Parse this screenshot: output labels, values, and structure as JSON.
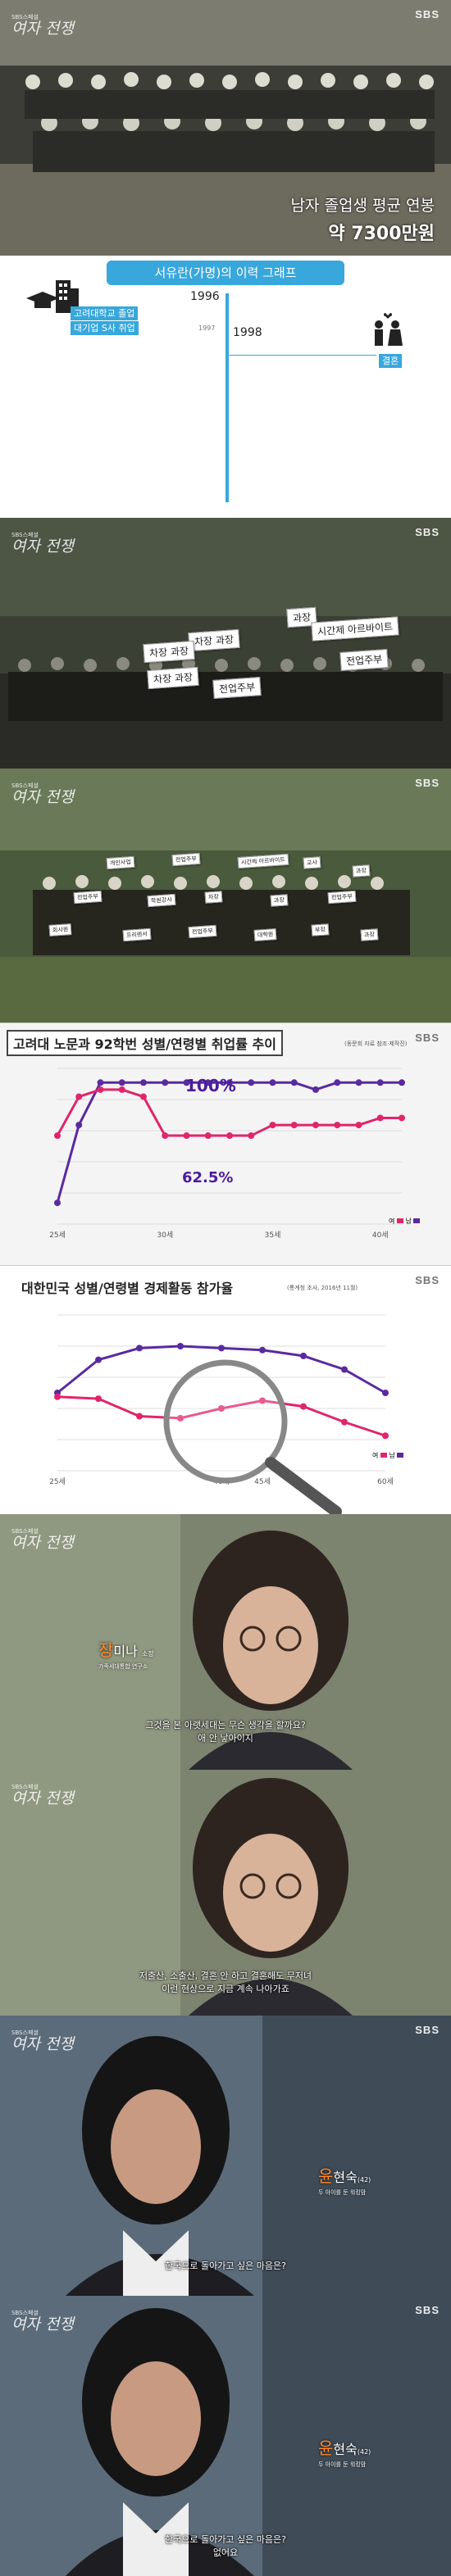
{
  "broadcaster": "SBS",
  "program": {
    "small": "SBS스페셜",
    "big": "여자 전쟁"
  },
  "panel1": {
    "caption_line1": "남자 졸업생 평균 연봉",
    "caption_line2": "약 7300만원"
  },
  "panel2": {
    "title": "서유란(가명)의 이력 그래프",
    "y1996": "1996",
    "y1997": "1997",
    "y1998": "1998",
    "label_left_1": "고려대학교 졸업",
    "label_left_2": "대기업 S사 취업",
    "label_right": "결혼"
  },
  "panel3": {
    "stickers": [
      "과장",
      "차장 과장",
      "차장 과장",
      "시간제 아르바이트",
      "전업주부",
      "차장 과장",
      "전업주부"
    ]
  },
  "panel4": {
    "stickers": [
      "개인사업",
      "전업주부",
      "시간제 아르바이트",
      "교사",
      "과장",
      "전업주부",
      "학원강사",
      "차장",
      "과장",
      "전업주부",
      "회사원",
      "프리랜서",
      "전업주부",
      "대학원",
      "부장",
      "과장"
    ]
  },
  "chart1": {
    "title": "고려대 노문과 92학번 성별/연령별 취업률 추이",
    "source": "(동문회 자료 참조·제작진)",
    "label_high": "100%",
    "label_low": "62.5%",
    "legend_f": "여",
    "legend_m": "남"
  },
  "chart2": {
    "title": "대한민국 성별/연령별 경제활동 참가율",
    "source": "(통계청 조사, 2016년 11월)",
    "legend_f": "여",
    "legend_m": "남"
  },
  "chart_data": [
    {
      "type": "line",
      "title": "고려대 노문과 92학번 성별/연령별 취업률 추이",
      "x": [
        "25세",
        "",
        "",
        "",
        "",
        "30세",
        "",
        "",
        "",
        "",
        "35세",
        "",
        "",
        "",
        "",
        "40세",
        ""
      ],
      "series": [
        {
          "name": "남",
          "values": [
            15,
            70,
            100,
            100,
            100,
            100,
            100,
            100,
            100,
            100,
            100,
            100,
            95,
            100,
            100,
            100,
            100
          ]
        },
        {
          "name": "여",
          "values": [
            62.5,
            90,
            95,
            95,
            90,
            62.5,
            62.5,
            62.5,
            62.5,
            62.5,
            70,
            70,
            70,
            70,
            70,
            75,
            75
          ]
        }
      ],
      "legend": "bottom-right"
    },
    {
      "type": "line",
      "title": "대한민국 성별/연령별 경제활동 참가율",
      "x": [
        "25세",
        "",
        "",
        "",
        "40세",
        "45세",
        "",
        "",
        "60세"
      ],
      "series": [
        {
          "name": "남",
          "values": [
            70,
            87,
            93,
            94,
            93,
            92,
            89,
            82,
            70
          ]
        },
        {
          "name": "여",
          "values": [
            68,
            67,
            58,
            57,
            62,
            66,
            63,
            55,
            48
          ]
        }
      ],
      "legend": "bottom-right"
    }
  ],
  "panel7": {
    "name_first": "장",
    "name_rest": "미나",
    "role": "소장",
    "affil": "가족세대통합 연구소",
    "sub1": "그것을 본 아랫세대는 무슨 생각을 할까요?",
    "sub2": "애 안 낳아이지"
  },
  "panel8": {
    "sub1": "저출산, 소출산, 결혼 안 하고 결혼해도 무저녀",
    "sub2": "이런 현상으로 지금 계속 나아가죠"
  },
  "panel9": {
    "name_first": "윤",
    "name_rest": "현숙",
    "age": "(42)",
    "desc": "두 아이를 둔 워킹맘",
    "sub1": "한국으로 돌아가고 싶은 마음은?"
  },
  "panel10": {
    "name_first": "윤",
    "name_rest": "현숙",
    "age": "(42)",
    "desc": "두 아이를 둔 워킹맘",
    "sub1": "한국으로 돌아가고 싶은 마음은?",
    "sub2": "없어요"
  }
}
